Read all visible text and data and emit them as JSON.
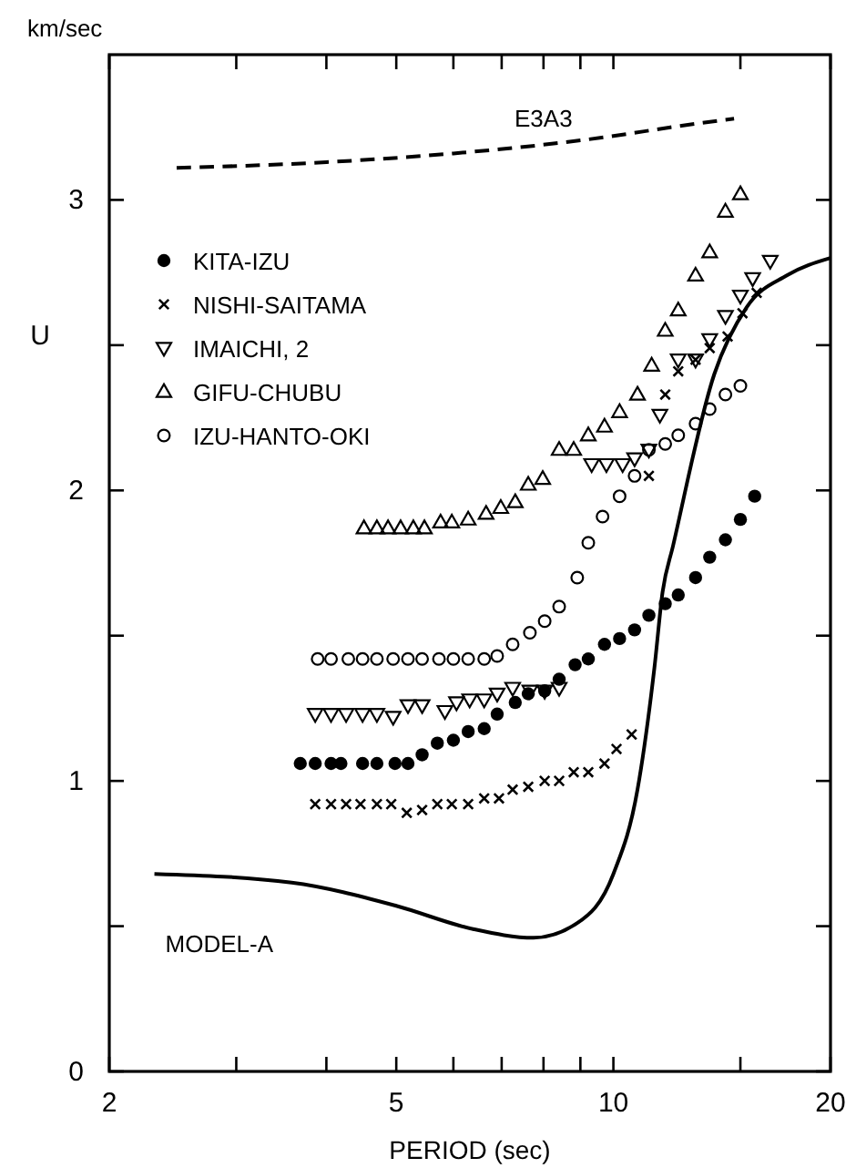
{
  "chart_data": {
    "type": "scatter",
    "xlabel": "PERIOD (sec)",
    "ylabel": "U",
    "annotations": [
      "km/sec"
    ],
    "log": "x",
    "xlim": [
      2,
      20
    ],
    "xticks": [
      2,
      {
        "value": 3,
        "label": null
      },
      {
        "value": 4,
        "label": null
      },
      5,
      {
        "value": 6,
        "label": null
      },
      {
        "value": 7,
        "label": null
      },
      {
        "value": 8,
        "label": null
      },
      {
        "value": 9,
        "label": null
      },
      10,
      {
        "value": 15,
        "label": null
      },
      20
    ],
    "ylim": [
      0,
      3.5
    ],
    "yticks": [
      0,
      {
        "value": 0.5,
        "label": null
      },
      1,
      {
        "value": 1.5,
        "label": null
      },
      2,
      {
        "value": 2.5,
        "label": null
      },
      3
    ],
    "grid": false,
    "legend": "top left",
    "series": [
      {
        "name": "KITA-IZU",
        "color": "#000000",
        "marker": "circle",
        "x": [
          3.68,
          3.86,
          4.06,
          4.19,
          4.49,
          4.7,
          4.98,
          5.19,
          5.43,
          5.7,
          6.0,
          6.29,
          6.62,
          6.9,
          7.31,
          7.62,
          8.03,
          8.41,
          8.85,
          9.23,
          9.72,
          10.2,
          10.7,
          11.2,
          11.8,
          12.3,
          13.0,
          13.6,
          14.3,
          15.0,
          15.7
        ],
        "values": [
          1.06,
          1.06,
          1.06,
          1.06,
          1.06,
          1.06,
          1.06,
          1.06,
          1.09,
          1.13,
          1.14,
          1.17,
          1.18,
          1.23,
          1.27,
          1.3,
          1.31,
          1.35,
          1.4,
          1.42,
          1.47,
          1.49,
          1.52,
          1.57,
          1.61,
          1.64,
          1.7,
          1.77,
          1.83,
          1.9,
          1.98
        ]
      },
      {
        "name": "NISHI-SAITAMA",
        "color": "#000000",
        "marker": "cross",
        "x": [
          3.86,
          4.06,
          4.26,
          4.46,
          4.7,
          4.92,
          5.17,
          5.43,
          5.7,
          5.97,
          6.29,
          6.62,
          6.94,
          7.25,
          7.62,
          8.03,
          8.41,
          8.81,
          9.23,
          9.72,
          10.1,
          10.6,
          11.2,
          11.8,
          12.3,
          13.0,
          13.6,
          14.4,
          15.1,
          15.8
        ],
        "values": [
          0.92,
          0.92,
          0.92,
          0.92,
          0.92,
          0.92,
          0.89,
          0.9,
          0.92,
          0.92,
          0.92,
          0.94,
          0.94,
          0.97,
          0.98,
          1.0,
          1.0,
          1.03,
          1.03,
          1.06,
          1.11,
          1.16,
          2.05,
          2.33,
          2.41,
          2.45,
          2.49,
          2.53,
          2.61,
          2.68
        ]
      },
      {
        "name": "IMAICHI, 2",
        "color": "#000000",
        "marker": "triangle-down",
        "x": [
          3.86,
          4.06,
          4.26,
          4.49,
          4.7,
          4.95,
          5.19,
          5.43,
          5.84,
          6.06,
          6.32,
          6.62,
          6.9,
          7.25,
          7.66,
          8.03,
          8.41,
          9.33,
          9.78,
          10.3,
          10.7,
          11.2,
          11.6,
          12.3,
          13.0,
          13.6,
          14.3,
          15.0,
          15.6,
          16.5
        ],
        "values": [
          1.23,
          1.23,
          1.23,
          1.23,
          1.23,
          1.22,
          1.26,
          1.26,
          1.24,
          1.27,
          1.28,
          1.28,
          1.3,
          1.32,
          1.31,
          1.31,
          1.32,
          2.09,
          2.09,
          2.09,
          2.11,
          2.14,
          2.26,
          2.45,
          2.45,
          2.52,
          2.6,
          2.67,
          2.73,
          2.79
        ]
      },
      {
        "name": "GIFU-CHUBU",
        "color": "#000000",
        "marker": "triangle",
        "x": [
          4.51,
          4.7,
          4.87,
          5.07,
          5.28,
          5.47,
          5.76,
          5.97,
          6.29,
          6.66,
          6.98,
          7.31,
          7.62,
          7.98,
          8.41,
          8.81,
          9.23,
          9.72,
          10.2,
          10.8,
          11.3,
          11.8,
          12.3,
          13.0,
          13.6,
          14.3,
          15.0
        ],
        "values": [
          1.87,
          1.87,
          1.87,
          1.87,
          1.87,
          1.87,
          1.89,
          1.89,
          1.9,
          1.92,
          1.94,
          1.96,
          2.02,
          2.04,
          2.14,
          2.14,
          2.19,
          2.22,
          2.27,
          2.33,
          2.43,
          2.55,
          2.62,
          2.74,
          2.82,
          2.96,
          3.02
        ]
      },
      {
        "name": "IZU-HANTO-OKI",
        "color": "#000000",
        "marker": "circle-open",
        "x": [
          3.89,
          4.06,
          4.29,
          4.49,
          4.7,
          4.95,
          5.19,
          5.43,
          5.73,
          6.0,
          6.29,
          6.62,
          6.9,
          7.25,
          7.66,
          8.03,
          8.41,
          8.91,
          9.23,
          9.66,
          10.2,
          10.7,
          11.2,
          11.8,
          12.3,
          13.0,
          13.6,
          14.3,
          15.0
        ],
        "values": [
          1.42,
          1.42,
          1.42,
          1.42,
          1.42,
          1.42,
          1.42,
          1.42,
          1.42,
          1.42,
          1.42,
          1.42,
          1.43,
          1.47,
          1.51,
          1.55,
          1.6,
          1.7,
          1.82,
          1.91,
          1.98,
          2.05,
          2.14,
          2.16,
          2.19,
          2.23,
          2.28,
          2.33,
          2.36
        ]
      },
      {
        "name": "E3A3",
        "type": "line",
        "color": "#000000",
        "marker": "none",
        "line_style": "dashed",
        "x": [
          2.48,
          4,
          6,
          8,
          10,
          12,
          14.7
        ],
        "values": [
          3.11,
          3.13,
          3.16,
          3.19,
          3.22,
          3.25,
          3.28
        ]
      },
      {
        "name": "MODEL-A",
        "type": "line",
        "color": "#000000",
        "marker": "none",
        "line_style": "solid",
        "x": [
          2.31,
          3.58,
          5.0,
          6.39,
          7.75,
          8.9,
          10.0,
          10.8,
          11.4,
          11.7,
          12.1,
          13.8,
          15.3,
          17.4,
          20
        ],
        "values": [
          0.68,
          0.65,
          0.57,
          0.49,
          0.46,
          0.51,
          0.68,
          0.97,
          1.39,
          1.65,
          1.81,
          2.4,
          2.63,
          2.74,
          2.8
        ]
      }
    ]
  }
}
